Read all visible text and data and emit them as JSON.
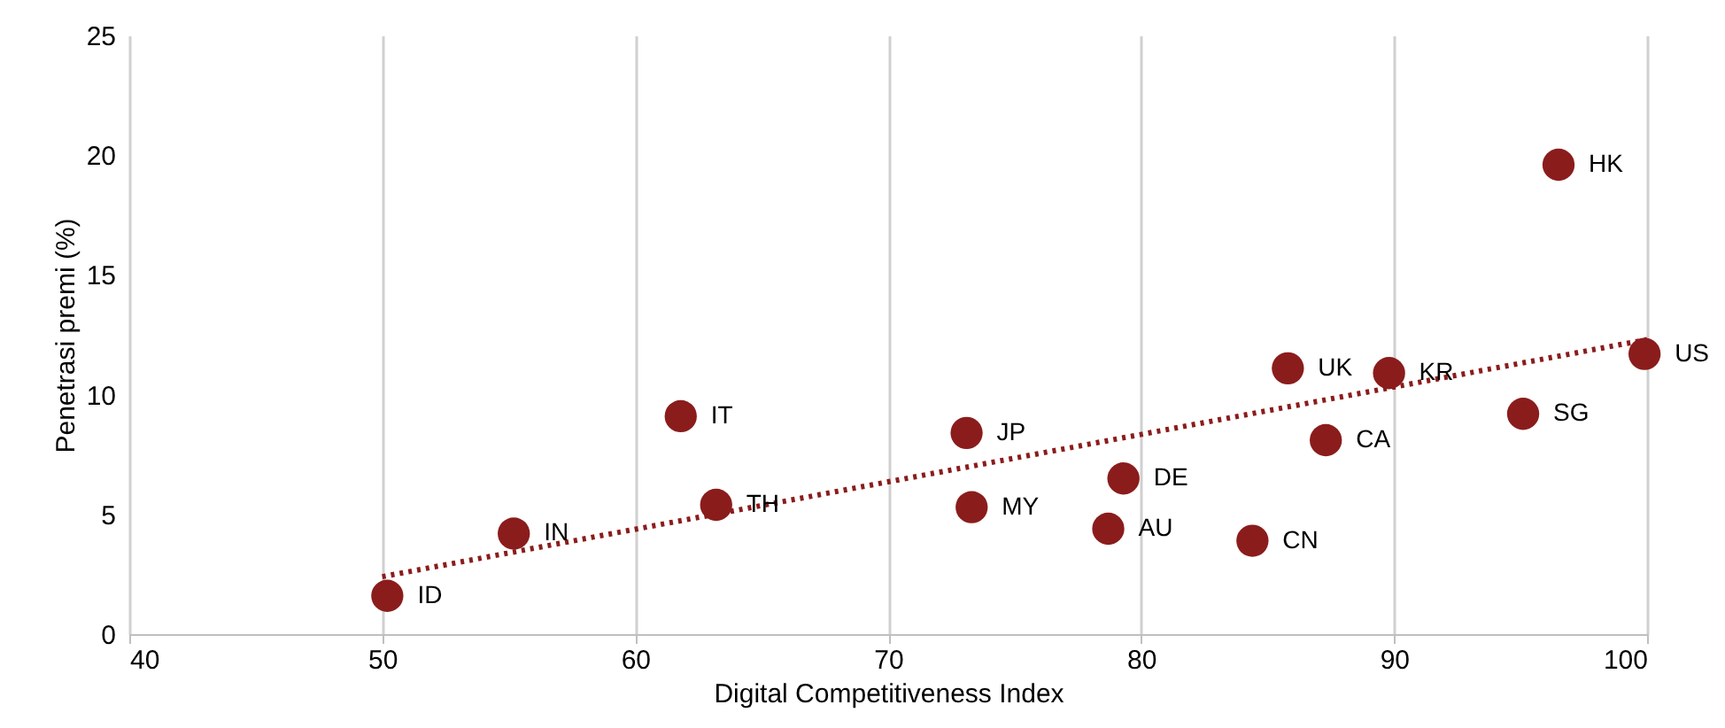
{
  "chart_data": {
    "type": "scatter",
    "xlabel": "Digital Competitiveness Index",
    "ylabel": "Penetrasi premi (%)",
    "xlim": [
      40,
      100
    ],
    "xticks": [
      40,
      50,
      60,
      70,
      80,
      90,
      100
    ],
    "ylim": [
      0,
      25
    ],
    "yticks": [
      0,
      5,
      10,
      15,
      20,
      25
    ],
    "grid": "x",
    "series": [
      {
        "type": "scatter",
        "color": "#8b1c1c",
        "marker": "circle",
        "x": [
          50.2,
          55.2,
          61.8,
          63.2,
          73.1,
          73.3,
          79.3,
          78.7,
          84.4,
          85.8,
          89.8,
          87.3,
          95.1,
          96.5,
          99.9
        ],
        "values": [
          1.6,
          4.2,
          9.1,
          5.4,
          8.4,
          5.3,
          6.5,
          4.4,
          3.9,
          11.1,
          10.9,
          8.1,
          9.2,
          19.6,
          11.7
        ]
      },
      {
        "type": "line",
        "color": "#8b1c1c",
        "line_style": "dotted",
        "x": [
          50,
          100
        ],
        "values": [
          2.4,
          12.3
        ]
      }
    ],
    "annotations": [
      {
        "text": "ID",
        "x": 50.2,
        "y": 1.6
      },
      {
        "text": "IN",
        "x": 55.2,
        "y": 4.2
      },
      {
        "text": "IT",
        "x": 61.8,
        "y": 9.1
      },
      {
        "text": "TH",
        "x": 63.2,
        "y": 5.4
      },
      {
        "text": "JP",
        "x": 73.1,
        "y": 8.4
      },
      {
        "text": "MY",
        "x": 73.3,
        "y": 5.3
      },
      {
        "text": "DE",
        "x": 79.3,
        "y": 6.5
      },
      {
        "text": "AU",
        "x": 78.7,
        "y": 4.4
      },
      {
        "text": "CN",
        "x": 84.4,
        "y": 3.9
      },
      {
        "text": "UK",
        "x": 85.8,
        "y": 11.1
      },
      {
        "text": "KR",
        "x": 89.8,
        "y": 10.9
      },
      {
        "text": "CA",
        "x": 87.3,
        "y": 8.1
      },
      {
        "text": "SG",
        "x": 95.1,
        "y": 9.2
      },
      {
        "text": "HK",
        "x": 96.5,
        "y": 19.6
      },
      {
        "text": "US",
        "x": 99.9,
        "y": 11.7
      }
    ]
  }
}
